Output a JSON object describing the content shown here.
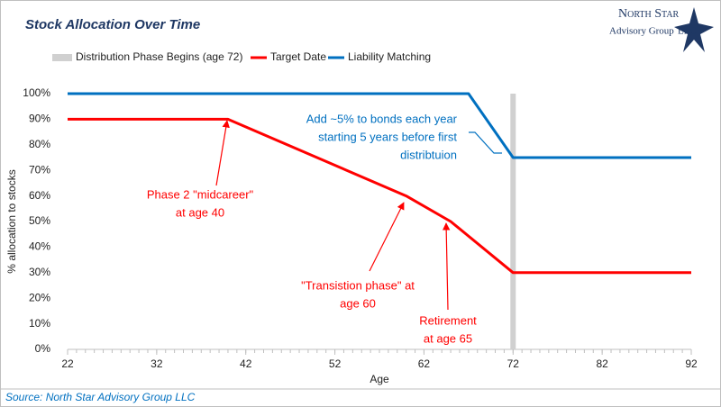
{
  "chart_data": {
    "type": "line",
    "title": "Stock Allocation Over Time",
    "xlabel": "Age",
    "ylabel": "% allocation to stocks",
    "xlim": [
      22,
      92
    ],
    "xticks": [
      22,
      32,
      42,
      52,
      62,
      72,
      82,
      92
    ],
    "ylim": [
      0,
      100
    ],
    "yticks": [
      {
        "value": 0,
        "label": "0%"
      },
      {
        "value": 10,
        "label": "10%"
      },
      {
        "value": 20,
        "label": "20%"
      },
      {
        "value": 30,
        "label": "30%"
      },
      {
        "value": 40,
        "label": "40%"
      },
      {
        "value": 50,
        "label": "50%"
      },
      {
        "value": 60,
        "label": "60%"
      },
      {
        "value": 70,
        "label": "70%"
      },
      {
        "value": 80,
        "label": "80%"
      },
      {
        "value": 90,
        "label": "90%"
      },
      {
        "value": 100,
        "label": "100%"
      }
    ],
    "vline": {
      "name": "Distribution Phase Begins (age 72)",
      "x": 72,
      "color": "#d0d0d0"
    },
    "series": [
      {
        "name": "Target Date",
        "color": "#ff0000",
        "x": [
          22,
          40,
          60,
          65,
          72,
          92
        ],
        "values": [
          90,
          90,
          60,
          50,
          30,
          30
        ]
      },
      {
        "name": "Liability Matching",
        "color": "#0070c0",
        "x": [
          22,
          67,
          72,
          92
        ],
        "values": [
          100,
          100,
          75,
          75
        ]
      }
    ],
    "annotations": [
      {
        "lines": [
          "Add ~5% to bonds each year",
          "starting 5 years before first",
          "distribtuion"
        ],
        "color": "#0070c0"
      },
      {
        "lines": [
          "Phase 2 \"midcareer\"",
          "at age 40"
        ],
        "color": "#ff0000"
      },
      {
        "lines": [
          "\"Transistion phase\" at",
          "age 60"
        ],
        "color": "#ff0000"
      },
      {
        "lines": [
          "Retirement",
          "at age 65"
        ],
        "color": "#ff0000"
      }
    ],
    "source": "Source: North Star Advisory Group LLC",
    "logo": {
      "name": "North Star",
      "line2": "Advisory Group",
      "line3": "LLC"
    }
  }
}
